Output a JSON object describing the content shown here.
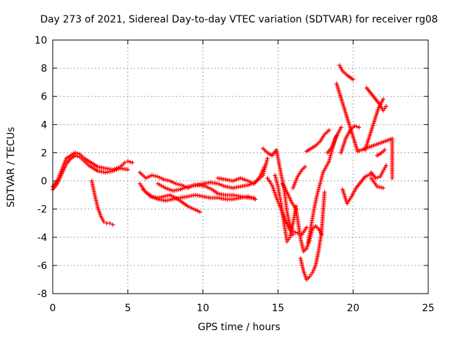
{
  "chart_data": {
    "type": "scatter",
    "title": "Day 273 of 2021, Sidereal Day-to-day VTEC variation (SDTVAR) for receiver rg08",
    "xlabel": "GPS time / hours",
    "ylabel": "SDTVAR / TECUs",
    "xlim": [
      0,
      25
    ],
    "ylim": [
      -8,
      10
    ],
    "xticks": [
      0,
      5,
      10,
      15,
      20,
      25
    ],
    "yticks": [
      -8,
      -6,
      -4,
      -2,
      0,
      2,
      4,
      6,
      8,
      10
    ],
    "grid": true,
    "marker": "plus",
    "color": "#ff0000",
    "series": [
      {
        "x": [
          0.0,
          0.3,
          0.6,
          0.9,
          1.2,
          1.5,
          1.8,
          2.1,
          2.4,
          2.7,
          3.0,
          3.5,
          4.0,
          4.5,
          4.8,
          5.0,
          5.3
        ],
        "y": [
          -0.4,
          0.0,
          0.8,
          1.6,
          1.8,
          2.0,
          1.9,
          1.6,
          1.4,
          1.2,
          1.0,
          0.9,
          0.8,
          1.0,
          1.3,
          1.4,
          1.3
        ]
      },
      {
        "x": [
          0.0,
          0.3,
          0.6,
          0.9,
          1.2,
          1.5,
          1.8,
          2.1,
          2.4,
          2.7,
          3.0,
          3.5,
          4.0,
          4.5,
          5.0
        ],
        "y": [
          -0.6,
          -0.2,
          0.5,
          1.2,
          1.6,
          1.8,
          1.7,
          1.4,
          1.1,
          0.9,
          0.7,
          0.6,
          0.7,
          0.9,
          0.8
        ]
      },
      {
        "x": [
          2.6,
          2.8,
          3.0,
          3.2,
          3.4,
          3.6,
          3.8,
          4.0
        ],
        "y": [
          0.0,
          -1.0,
          -1.9,
          -2.5,
          -2.9,
          -3.0,
          -3.0,
          -3.1
        ]
      },
      {
        "x": [
          5.8,
          6.2,
          6.6,
          7.0,
          7.4,
          7.8,
          8.2,
          8.6,
          9.0,
          9.4,
          9.8,
          10.2,
          10.6,
          11.0,
          11.5,
          12.0,
          12.5,
          13.0,
          13.4
        ],
        "y": [
          0.6,
          0.2,
          0.4,
          0.3,
          0.1,
          0.0,
          -0.2,
          -0.3,
          -0.5,
          -0.3,
          -0.3,
          -0.4,
          -0.6,
          -0.9,
          -1.0,
          -1.0,
          -1.1,
          -1.2,
          -1.2
        ]
      },
      {
        "x": [
          5.8,
          6.2,
          6.6,
          7.0,
          7.4,
          7.8,
          8.2,
          8.6,
          9.0,
          9.4,
          9.8
        ],
        "y": [
          -0.2,
          -0.8,
          -1.1,
          -1.2,
          -1.1,
          -1.0,
          -1.2,
          -1.5,
          -1.8,
          -2.0,
          -2.2
        ]
      },
      {
        "x": [
          6.0,
          6.5,
          7.0,
          7.5,
          8.0,
          8.5,
          9.0,
          9.5,
          10.0,
          10.5,
          11.0,
          11.5,
          12.0,
          12.5,
          13.0,
          13.5
        ],
        "y": [
          -0.6,
          -1.1,
          -1.3,
          -1.4,
          -1.3,
          -1.2,
          -1.1,
          -1.0,
          -1.1,
          -1.2,
          -1.2,
          -1.3,
          -1.3,
          -1.2,
          -1.1,
          -1.3
        ]
      },
      {
        "x": [
          7.0,
          7.5,
          8.0,
          8.5,
          9.0,
          9.5,
          10.0,
          10.5,
          11.0,
          11.5,
          12.0,
          12.5,
          13.0,
          13.5,
          14.0,
          14.3
        ],
        "y": [
          -0.2,
          -0.5,
          -0.7,
          -0.6,
          -0.4,
          -0.3,
          -0.2,
          -0.1,
          -0.2,
          -0.4,
          -0.5,
          -0.4,
          -0.3,
          -0.1,
          0.4,
          1.6
        ]
      },
      {
        "x": [
          11.0,
          11.5,
          12.0,
          12.5,
          13.0,
          13.4,
          13.8,
          14.0,
          14.2
        ],
        "y": [
          0.2,
          0.1,
          0.0,
          0.2,
          0.0,
          -0.2,
          0.3,
          0.8,
          1.2
        ]
      },
      {
        "x": [
          14.0,
          14.3,
          14.6,
          14.9,
          15.2,
          15.4,
          15.6,
          15.8,
          16.0,
          16.3,
          16.6,
          16.9
        ],
        "y": [
          2.3,
          2.0,
          1.8,
          2.2,
          0.5,
          -0.5,
          -2.2,
          -3.2,
          -3.6,
          -3.7,
          -3.8,
          -3.3
        ]
      },
      {
        "x": [
          14.3,
          14.6,
          14.9,
          15.2,
          15.5,
          15.8,
          16.0
        ],
        "y": [
          0.2,
          -0.3,
          -1.2,
          -2.0,
          -2.8,
          -3.5,
          -3.8
        ]
      },
      {
        "x": [
          14.8,
          15.0,
          15.2,
          15.4,
          15.6,
          15.8,
          16.0,
          16.2
        ],
        "y": [
          0.4,
          -0.4,
          -1.6,
          -3.0,
          -4.3,
          -4.0,
          -3.0,
          -1.8
        ]
      },
      {
        "x": [
          15.3,
          15.6,
          15.9,
          16.2,
          16.5,
          16.7,
          16.9,
          17.1,
          17.3,
          17.5,
          17.7,
          17.9
        ],
        "y": [
          -0.2,
          -0.8,
          -1.5,
          -2.0,
          -4.1,
          -5.0,
          -4.8,
          -4.2,
          -3.4,
          -3.2,
          -3.4,
          -3.8
        ]
      },
      {
        "x": [
          16.5,
          16.7,
          16.9,
          17.1,
          17.3,
          17.5,
          17.7,
          17.9,
          18.1
        ],
        "y": [
          -5.5,
          -6.4,
          -7.0,
          -6.8,
          -6.5,
          -6.0,
          -5.0,
          -3.6,
          -0.8
        ]
      },
      {
        "x": [
          17.0,
          17.2,
          17.4,
          17.6,
          17.8,
          18.0,
          18.2,
          18.4,
          18.6,
          18.8,
          19.0,
          19.2
        ],
        "y": [
          -4.4,
          -3.2,
          -2.0,
          -1.0,
          -0.2,
          0.6,
          1.0,
          1.4,
          2.2,
          3.0,
          3.4,
          3.8
        ]
      },
      {
        "x": [
          16.0,
          16.3,
          16.6,
          16.8
        ],
        "y": [
          -0.5,
          0.3,
          0.8,
          1.0
        ]
      },
      {
        "x": [
          16.9,
          17.2,
          17.5,
          17.8,
          18.1,
          18.4
        ],
        "y": [
          2.1,
          2.3,
          2.5,
          2.8,
          3.3,
          3.6
        ]
      },
      {
        "x": [
          18.3,
          18.6,
          18.9
        ],
        "y": [
          2.0,
          2.4,
          3.2
        ]
      },
      {
        "x": [
          19.3,
          19.6,
          19.9,
          20.2,
          20.5,
          20.8,
          21.2
        ],
        "y": [
          -0.6,
          -1.6,
          -1.1,
          -0.5,
          -0.1,
          0.3,
          0.5
        ]
      },
      {
        "x": [
          19.2,
          19.5,
          19.8,
          20.1,
          20.4
        ],
        "y": [
          2.0,
          3.0,
          3.6,
          3.9,
          3.8
        ]
      },
      {
        "x": [
          19.1,
          19.3,
          19.6,
          20.0
        ],
        "y": [
          8.2,
          7.8,
          7.5,
          7.2
        ]
      },
      {
        "x": [
          20.9,
          21.2,
          21.5,
          21.8,
          22.0,
          22.2
        ],
        "y": [
          6.6,
          6.2,
          5.8,
          5.4,
          5.0,
          5.3
        ]
      },
      {
        "x": [
          20.8,
          21.1,
          21.4,
          21.7,
          22.0
        ],
        "y": [
          2.2,
          3.2,
          4.2,
          5.2,
          5.8
        ]
      },
      {
        "x": [
          21.2,
          21.5,
          21.8,
          22.0,
          22.2
        ],
        "y": [
          0.6,
          0.2,
          0.3,
          0.7,
          1.1
        ]
      },
      {
        "x": [
          21.6,
          21.9,
          22.1
        ],
        "y": [
          1.8,
          2.0,
          2.2
        ]
      },
      {
        "x": [
          21.2,
          21.6,
          22.0
        ],
        "y": [
          0.2,
          -0.4,
          -0.5
        ]
      },
      {
        "x": [
          18.9,
          20.3,
          22.6,
          22.6,
          22.6
        ],
        "y": [
          6.9,
          2.1,
          3.0,
          0.5,
          0.2
        ]
      }
    ]
  }
}
